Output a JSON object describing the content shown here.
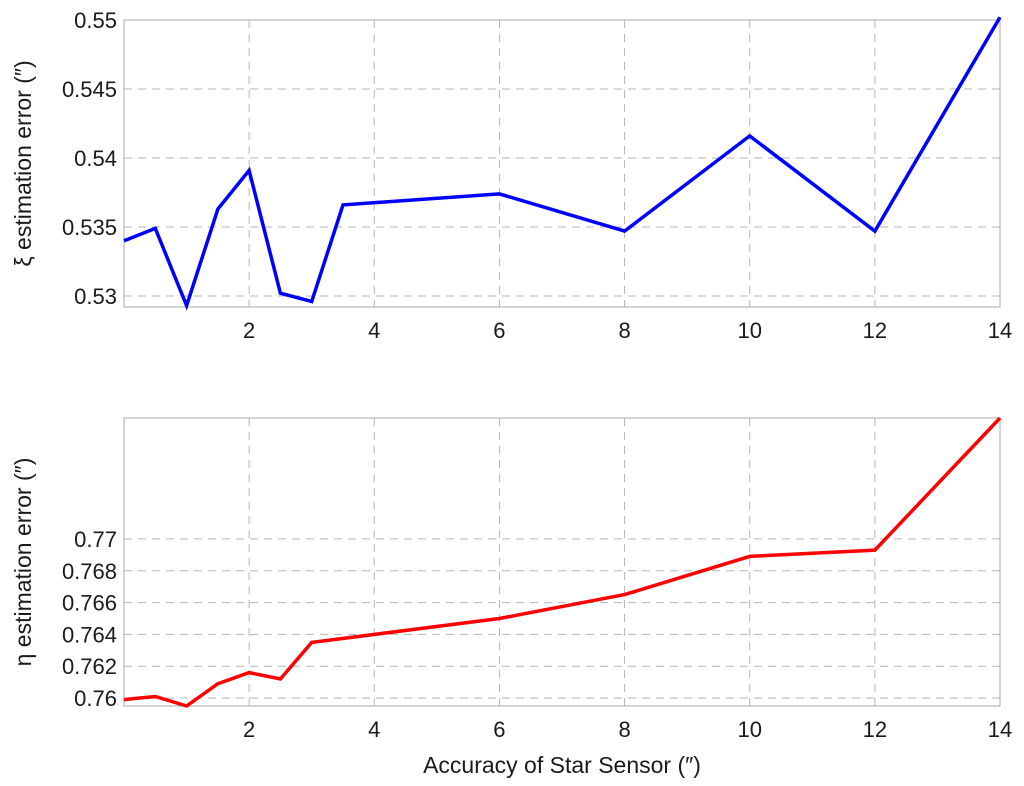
{
  "chart_data": [
    {
      "type": "line",
      "title": "",
      "xlabel": "",
      "ylabel": "ξ estimation error (″)",
      "xlim": [
        0,
        14
      ],
      "ylim": [
        0.5292,
        0.55
      ],
      "xticks": [
        2,
        4,
        6,
        8,
        10,
        12,
        14
      ],
      "yticks": [
        0.53,
        0.535,
        0.54,
        0.545,
        0.55
      ],
      "xtick_labels": [
        "2",
        "4",
        "6",
        "8",
        "10",
        "12",
        "14"
      ],
      "ytick_labels": [
        "0.53",
        "0.535",
        "0.54",
        "0.545",
        "0.55"
      ],
      "grid": true,
      "series": [
        {
          "color": "#0000ff",
          "x": [
            0,
            0.5,
            1,
            1.5,
            2,
            2.5,
            3,
            3.5,
            6,
            8,
            10,
            12,
            14
          ],
          "y": [
            0.534,
            0.5349,
            0.5293,
            0.5363,
            0.5391,
            0.5302,
            0.5296,
            0.5366,
            0.5374,
            0.5347,
            0.5416,
            0.5347,
            0.5502
          ]
        }
      ]
    },
    {
      "type": "line",
      "title": "",
      "xlabel": "Accuracy of Star Sensor (″)",
      "ylabel": "η estimation error (″)",
      "xlim": [
        0,
        14
      ],
      "ylim": [
        0.7595,
        0.7776
      ],
      "xticks": [
        2,
        4,
        6,
        8,
        10,
        12,
        14
      ],
      "yticks": [
        0.76,
        0.762,
        0.764,
        0.766,
        0.768,
        0.77
      ],
      "xtick_labels": [
        "2",
        "4",
        "6",
        "8",
        "10",
        "12",
        "14"
      ],
      "ytick_labels": [
        "0.76",
        "0.762",
        "0.764",
        "0.766",
        "0.768",
        "0.77"
      ],
      "grid": true,
      "series": [
        {
          "color": "#ff0000",
          "x": [
            0,
            0.5,
            1,
            1.5,
            2,
            2.5,
            3,
            6,
            8,
            10,
            12,
            14
          ],
          "y": [
            0.7599,
            0.7601,
            0.7595,
            0.7609,
            0.7616,
            0.7612,
            0.7635,
            0.765,
            0.7665,
            0.7689,
            0.7693,
            0.7776
          ]
        }
      ]
    }
  ]
}
